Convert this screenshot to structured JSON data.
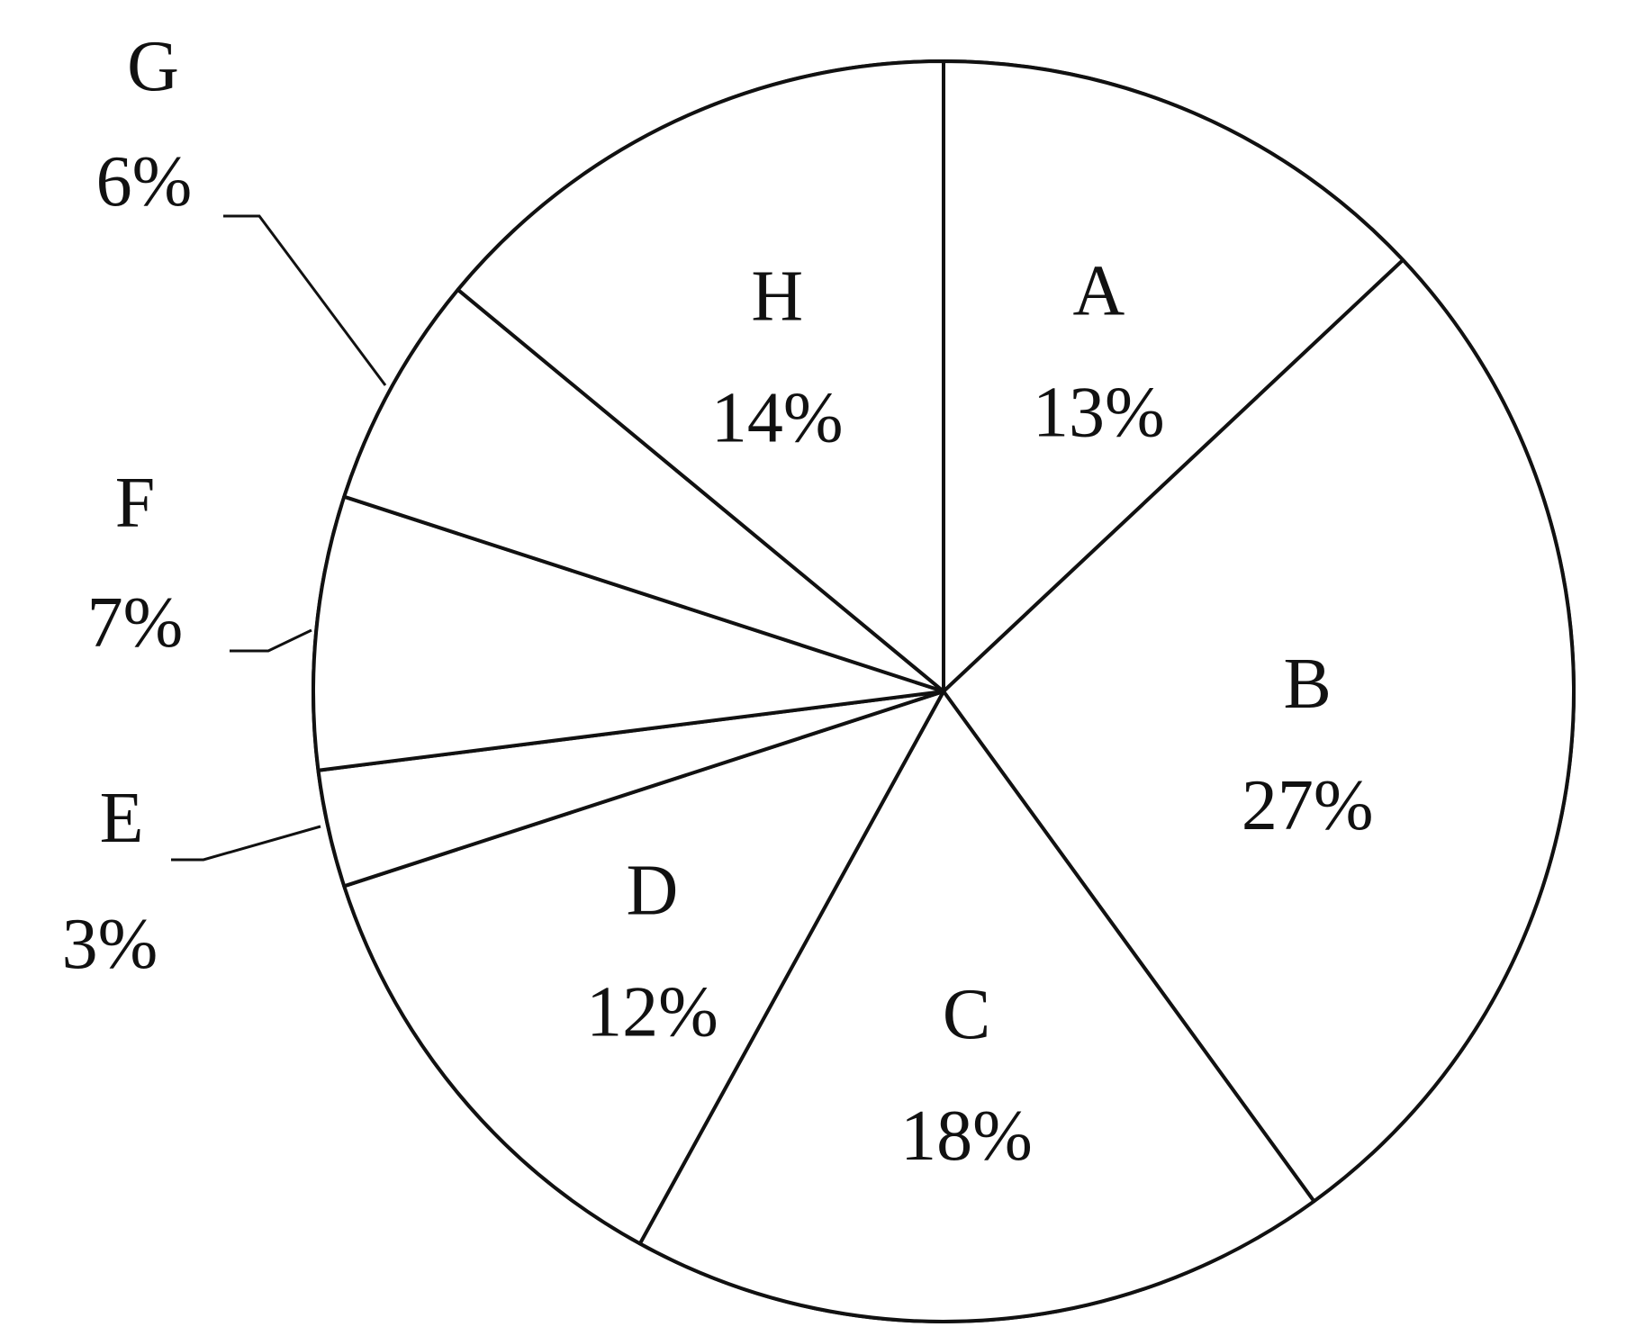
{
  "chart_data": {
    "type": "pie",
    "categories": [
      "A",
      "B",
      "C",
      "D",
      "E",
      "F",
      "G",
      "H"
    ],
    "values": [
      13,
      27,
      18,
      12,
      3,
      7,
      6,
      14
    ],
    "value_labels": [
      "13%",
      "27%",
      "18%",
      "12%",
      "3%",
      "7%",
      "6%",
      "14%"
    ],
    "start": "12 o'clock",
    "direction": "clockwise",
    "title": "",
    "legend": "none",
    "colors": {
      "stroke": "#111111",
      "fill": "#ffffff",
      "text": "#111111"
    }
  }
}
